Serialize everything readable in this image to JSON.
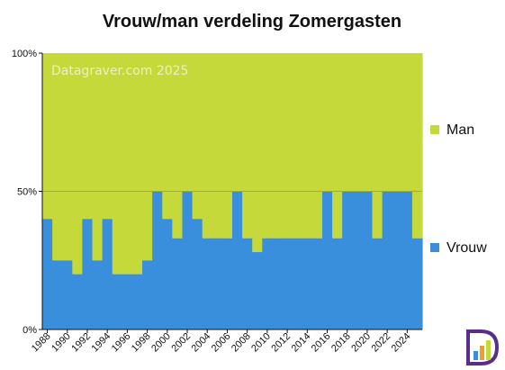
{
  "chart_data": {
    "type": "area",
    "title": "Vrouw/man verdeling Zomergasten",
    "xlabel": "",
    "ylabel": "",
    "ylim": [
      0,
      100
    ],
    "y_ticks": [
      "0%",
      "50%",
      "100%"
    ],
    "x_tick_labels": [
      "1988",
      "1990",
      "1992",
      "1994",
      "1996",
      "1998",
      "2000",
      "2002",
      "2004",
      "2006",
      "2008",
      "2010",
      "2012",
      "2014",
      "2016",
      "2018",
      "2020",
      "2022",
      "2024"
    ],
    "x": [
      1988,
      1989,
      1990,
      1991,
      1992,
      1993,
      1994,
      1995,
      1996,
      1997,
      1998,
      1999,
      2000,
      2001,
      2002,
      2003,
      2004,
      2005,
      2006,
      2007,
      2008,
      2009,
      2010,
      2011,
      2012,
      2013,
      2014,
      2015,
      2016,
      2017,
      2018,
      2019,
      2020,
      2021,
      2022,
      2023,
      2024,
      2025
    ],
    "series": [
      {
        "name": "Vrouw",
        "color": "#3a8fdc",
        "values": [
          40,
          25,
          25,
          20,
          40,
          25,
          40,
          20,
          20,
          20,
          25,
          50,
          40,
          33,
          50,
          40,
          33,
          33,
          33,
          50,
          33,
          28,
          33,
          33,
          33,
          33,
          33,
          33,
          50,
          33,
          50,
          50,
          50,
          33,
          50,
          50,
          50,
          33
        ]
      },
      {
        "name": "Man",
        "color": "#c6d93a",
        "values": [
          60,
          75,
          75,
          80,
          60,
          75,
          60,
          80,
          80,
          80,
          75,
          50,
          60,
          67,
          50,
          60,
          67,
          67,
          67,
          50,
          67,
          72,
          67,
          67,
          67,
          67,
          67,
          67,
          50,
          67,
          50,
          50,
          50,
          67,
          50,
          50,
          50,
          67
        ]
      }
    ],
    "grid": true,
    "legend_position": "right",
    "watermark": "Datagraver.com 2025",
    "logo": "datagraver-logo-icon"
  }
}
